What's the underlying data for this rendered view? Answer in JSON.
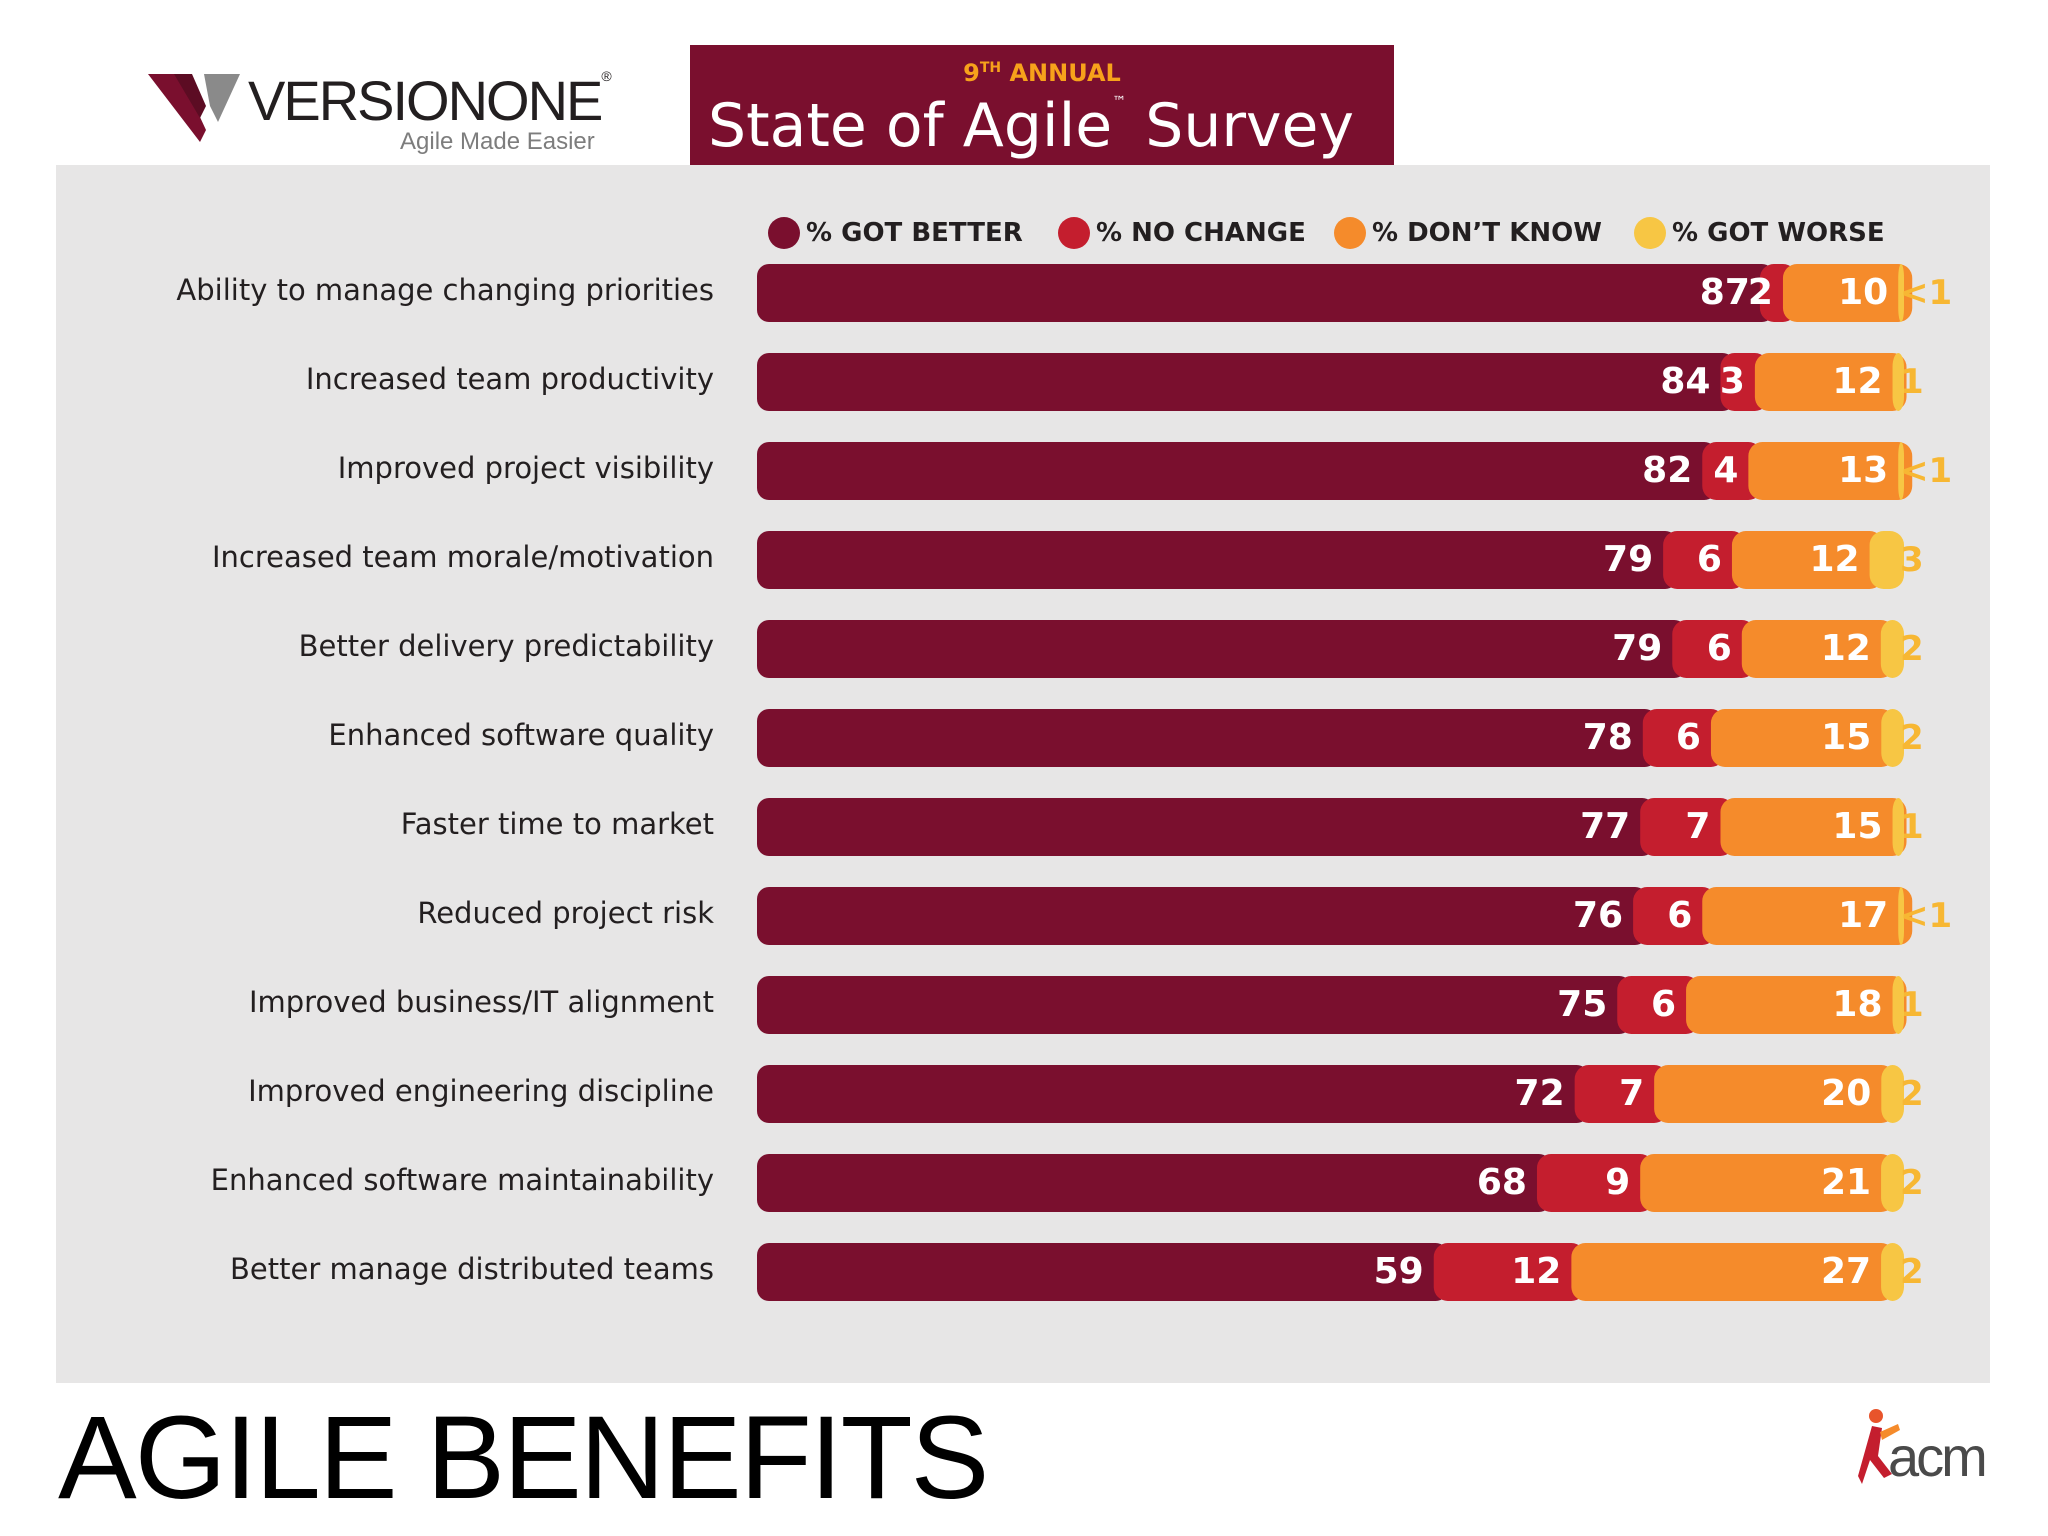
{
  "header": {
    "logo_brand": "VERSIONONE",
    "logo_reg": "®",
    "logo_tagline": "Agile Made Easier",
    "banner_ordinal": "9",
    "banner_ordinal_suffix": "TH",
    "banner_eyebrow": "ANNUAL",
    "banner_title_a": "State of Agile",
    "banner_tm": "™",
    "banner_title_b": "Survey"
  },
  "footer": {
    "title": "AGILE BENEFITS",
    "acm_logo_text": "acm"
  },
  "colors": {
    "got_better": "#7a0f2e",
    "no_change": "#c41e2e",
    "dont_know": "#f58b2b",
    "got_worse": "#f7c644",
    "panel_bg": "#e7e6e6"
  },
  "chart_data": {
    "type": "bar",
    "orientation": "horizontal",
    "stacked": true,
    "grid": false,
    "legend_position": "top",
    "categories": [
      "Ability to manage changing priorities",
      "Increased team productivity",
      "Improved project visibility",
      "Increased team morale/motivation",
      "Better delivery predictability",
      "Enhanced software quality",
      "Faster time to market",
      "Reduced project risk",
      "Improved business/IT alignment",
      "Improved engineering discipline",
      "Enhanced software maintainability",
      "Better manage distributed teams"
    ],
    "series": [
      {
        "name": "% GOT BETTER",
        "values": [
          87,
          84,
          82,
          79,
          79,
          78,
          77,
          76,
          75,
          72,
          68,
          59
        ]
      },
      {
        "name": "% NO CHANGE",
        "values": [
          2,
          3,
          4,
          6,
          6,
          6,
          7,
          6,
          6,
          7,
          9,
          12
        ]
      },
      {
        "name": "% DON’T KNOW",
        "values": [
          10,
          12,
          13,
          12,
          12,
          15,
          15,
          17,
          18,
          20,
          21,
          27
        ]
      },
      {
        "name": "% GOT WORSE",
        "values": [
          0.5,
          1,
          0.5,
          3,
          2,
          2,
          1,
          0.5,
          1,
          2,
          2,
          2
        ]
      }
    ],
    "got_worse_labels": [
      "<1",
      "1",
      "<1",
      "3",
      "2",
      "2",
      "1",
      "<1",
      "1",
      "2",
      "2",
      "2"
    ],
    "xlim": [
      0,
      100
    ]
  }
}
